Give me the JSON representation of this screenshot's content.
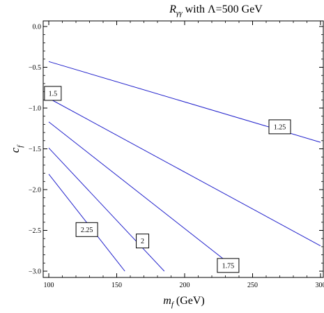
{
  "chart_data": {
    "type": "line",
    "title_parts": {
      "r": "R",
      "r_sub": "γγ",
      "rest": " with Λ=500 GeV"
    },
    "xlabel_parts": {
      "var": "m",
      "sub": "f",
      "unit": " (GeV)"
    },
    "ylabel_parts": {
      "var": "c",
      "sub": "f"
    },
    "xlim": [
      100,
      300
    ],
    "ylim": [
      -3.05,
      0.05
    ],
    "x_ticks": [
      100,
      150,
      200,
      250,
      300
    ],
    "x_tick_labels": [
      "100",
      "150",
      "200",
      "250",
      "300"
    ],
    "y_ticks": [
      0.0,
      -0.5,
      -1.0,
      -1.5,
      -2.0,
      -2.5,
      -3.0
    ],
    "y_tick_labels": [
      "0.0",
      "−0.5",
      "−1.0",
      "−1.5",
      "−2.0",
      "−2.5",
      "−3.0"
    ],
    "grid": false,
    "line_color": "#2222cc",
    "series": [
      {
        "name": "1.25",
        "points": [
          [
            100,
            -0.43
          ],
          [
            300,
            -1.42
          ]
        ],
        "label_at": [
          270,
          -1.23
        ]
      },
      {
        "name": "1.5",
        "points": [
          [
            100,
            -0.88
          ],
          [
            300,
            -2.69
          ]
        ],
        "label_at": [
          103,
          -0.82
        ]
      },
      {
        "name": "1.75",
        "points": [
          [
            100,
            -1.17
          ],
          [
            240,
            -3.0
          ]
        ],
        "label_at": [
          232,
          -2.93
        ]
      },
      {
        "name": "2",
        "points": [
          [
            100,
            -1.49
          ],
          [
            185,
            -3.0
          ]
        ],
        "label_at": [
          169,
          -2.63
        ]
      },
      {
        "name": "2.25",
        "points": [
          [
            100,
            -1.81
          ],
          [
            156,
            -3.0
          ]
        ],
        "label_at": [
          128,
          -2.49
        ]
      }
    ]
  }
}
